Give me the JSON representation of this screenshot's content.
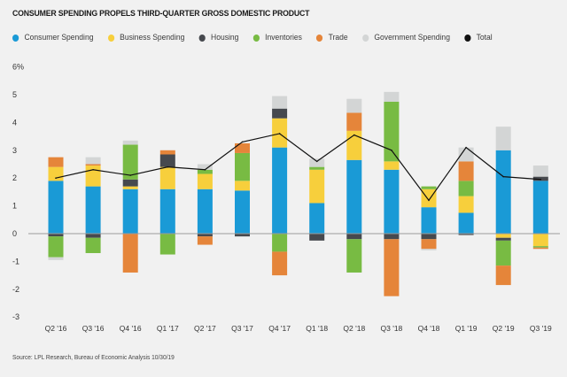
{
  "chart_data": {
    "type": "bar",
    "stacked": true,
    "title": "CONSUMER SPENDING PROPELS THIRD-QUARTER GROSS DOMESTIC PRODUCT",
    "source": "Source: LPL Research, Bureau of Economic Analysis 10/30/19",
    "xlabel": "",
    "ylabel": "",
    "ylim": [
      -3,
      6
    ],
    "yticks": [
      6,
      5,
      4,
      3,
      2,
      1,
      0,
      -1,
      -2,
      -3
    ],
    "ytick_labels": [
      "6%",
      "5",
      "4",
      "3",
      "2",
      "1",
      "0",
      "-1",
      "-2",
      "-3"
    ],
    "legend_position": "top-left",
    "grid": false,
    "categories": [
      "Q2 '16",
      "Q3 '16",
      "Q4 '16",
      "Q1 '17",
      "Q2 '17",
      "Q3 '17",
      "Q4 '17",
      "Q1 '18",
      "Q2 '18",
      "Q3 '18",
      "Q4 '18",
      "Q1 '19",
      "Q2 '19",
      "Q3 '19"
    ],
    "series": [
      {
        "name": "Consumer Spending",
        "color": "#1a9ad6",
        "values": [
          1.9,
          1.7,
          1.6,
          1.6,
          1.6,
          1.55,
          3.1,
          1.1,
          2.65,
          2.3,
          0.95,
          0.75,
          3.0,
          1.9
        ]
      },
      {
        "name": "Business Spending",
        "color": "#f7cf3c",
        "values": [
          0.5,
          0.75,
          0.1,
          0.8,
          0.55,
          0.35,
          1.05,
          1.2,
          1.05,
          0.3,
          0.65,
          0.6,
          -0.15,
          -0.45
        ]
      },
      {
        "name": "Housing",
        "color": "#46494e",
        "values": [
          -0.1,
          -0.15,
          0.25,
          0.45,
          -0.1,
          -0.1,
          0.35,
          -0.25,
          -0.2,
          -0.2,
          -0.2,
          -0.05,
          -0.1,
          0.15
        ]
      },
      {
        "name": "Inventories",
        "color": "#78bb43",
        "values": [
          -0.75,
          -0.55,
          1.25,
          -0.75,
          0.15,
          1.0,
          -0.65,
          0.1,
          -1.2,
          2.15,
          0.1,
          0.55,
          -0.9,
          -0.05
        ]
      },
      {
        "name": "Trade",
        "color": "#e5853a",
        "values": [
          0.35,
          0.05,
          -1.4,
          0.15,
          -0.3,
          0.35,
          -0.85,
          0.0,
          0.65,
          -2.05,
          -0.35,
          0.7,
          -0.7,
          -0.05
        ]
      },
      {
        "name": "Government Spending",
        "color": "#d3d5d5",
        "values": [
          -0.1,
          0.25,
          0.15,
          0.0,
          0.2,
          0.0,
          0.45,
          0.3,
          0.5,
          0.35,
          -0.05,
          0.5,
          0.85,
          0.4
        ]
      }
    ],
    "line_series": {
      "name": "Total",
      "color": "#111111",
      "values": [
        2.0,
        2.3,
        2.1,
        2.4,
        2.3,
        3.3,
        3.6,
        2.6,
        3.55,
        3.0,
        1.2,
        3.1,
        2.05,
        1.95
      ]
    }
  }
}
